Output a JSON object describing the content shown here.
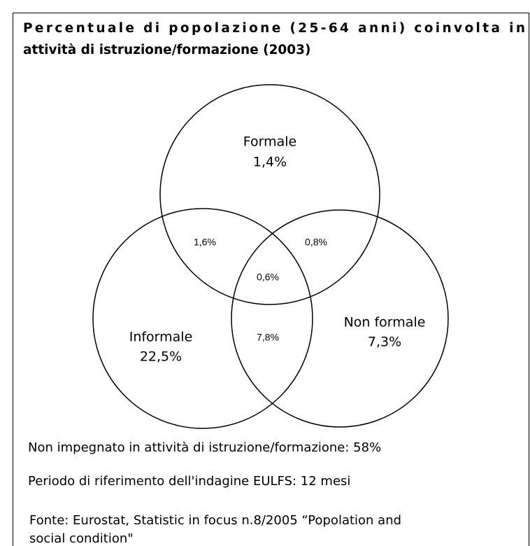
{
  "header": {
    "title_lines": [
      "Percentuale di popolazione (25-64 anni) coinvolta in",
      "attività di istruzione/formazione (2003)"
    ]
  },
  "sets": [
    {
      "name": "Formale",
      "value": "1,4%"
    },
    {
      "name": "Informale",
      "value": "22,5%"
    },
    {
      "name": "Non formale",
      "value": "7,3%"
    }
  ],
  "intersections": {
    "formale_informale": "1,6%",
    "formale_non_formale": "0,8%",
    "all": "0,6%",
    "informale_non_formale": "7,8%"
  },
  "notes": [
    "Non impegnato in attività di istruzione/formazione: 58%",
    "Periodo di riferimento dell'indagine EULFS: 12 mesi"
  ],
  "source_lines": [
    "Fonte: Eurostat, Statistic in focus n.8/2005 “Popolation and",
    "social condition\""
  ]
}
